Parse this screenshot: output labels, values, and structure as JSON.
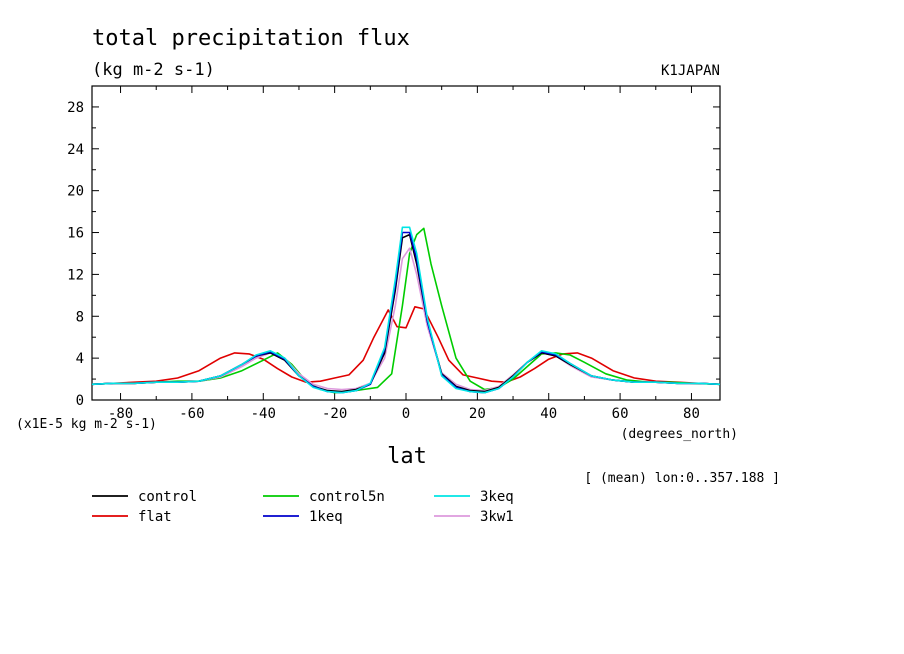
{
  "chart_data": {
    "type": "line",
    "title": "total precipitation flux",
    "units": "(kg m-2 s-1)",
    "source_label": "K1JAPAN",
    "ylabel_scale": "(x1E-5 kg m-2 s-1)",
    "xlabel": "lat",
    "xunits": "(degrees_north)",
    "mean_note": "[ (mean) lon:0..357.188 ]",
    "xlim": [
      -88,
      88
    ],
    "ylim": [
      0,
      30
    ],
    "xticks": [
      -80,
      -60,
      -40,
      -20,
      0,
      20,
      40,
      60,
      80
    ],
    "yticks": [
      0,
      4,
      8,
      12,
      16,
      20,
      24,
      28
    ],
    "colors": {
      "control": "#000000",
      "flat": "#e00000",
      "control5n": "#00cc00",
      "1keq": "#0000cc",
      "3keq": "#00e5e5",
      "3kw1": "#dd99dd"
    },
    "series": [
      {
        "name": "flat",
        "color": "#e00000",
        "x": [
          -88,
          -82,
          -76,
          -70,
          -64,
          -58,
          -52,
          -48,
          -44,
          -40,
          -36,
          -32,
          -28,
          -24,
          -20,
          -16,
          -12,
          -9,
          -5,
          -2.5,
          0,
          2.5,
          5,
          9,
          12,
          16,
          20,
          24,
          28,
          32,
          36,
          40,
          44,
          48,
          52,
          58,
          64,
          70,
          76,
          82,
          88
        ],
        "y": [
          1.5,
          1.6,
          1.7,
          1.8,
          2.1,
          2.8,
          4.0,
          4.5,
          4.4,
          3.9,
          3.0,
          2.2,
          1.7,
          1.8,
          2.1,
          2.4,
          3.8,
          6.0,
          8.6,
          7.0,
          6.9,
          8.9,
          8.7,
          6.0,
          3.8,
          2.4,
          2.1,
          1.8,
          1.7,
          2.2,
          3.0,
          3.9,
          4.4,
          4.5,
          4.0,
          2.8,
          2.1,
          1.8,
          1.7,
          1.6,
          1.5
        ]
      },
      {
        "name": "control5n",
        "color": "#00cc00",
        "x": [
          -88,
          -82,
          -76,
          -70,
          -64,
          -58,
          -52,
          -46,
          -40,
          -36,
          -32,
          -28,
          -24,
          -20,
          -16,
          -12,
          -8,
          -4,
          -1,
          1,
          3,
          5,
          7,
          10,
          14,
          18,
          22,
          26,
          30,
          34,
          38,
          42,
          46,
          50,
          56,
          62,
          68,
          74,
          80,
          88
        ],
        "y": [
          1.5,
          1.6,
          1.6,
          1.7,
          1.8,
          1.8,
          2.1,
          2.8,
          3.8,
          4.5,
          3.4,
          1.8,
          1.0,
          0.7,
          0.8,
          1.0,
          1.2,
          2.5,
          9.0,
          14.0,
          15.8,
          16.4,
          13.0,
          9.0,
          4.0,
          1.8,
          1.0,
          1.2,
          2.0,
          3.2,
          4.4,
          4.5,
          4.3,
          3.6,
          2.5,
          1.9,
          1.7,
          1.7,
          1.6,
          1.5
        ]
      },
      {
        "name": "3kw1",
        "color": "#dd99dd",
        "x": [
          -88,
          -82,
          -76,
          -70,
          -64,
          -58,
          -52,
          -46,
          -42,
          -38,
          -34,
          -30,
          -26,
          -22,
          -18,
          -14,
          -10,
          -6,
          -3,
          -1,
          1,
          3,
          6,
          10,
          14,
          18,
          22,
          26,
          30,
          34,
          38,
          42,
          46,
          52,
          58,
          64,
          70,
          76,
          82,
          88
        ],
        "y": [
          1.5,
          1.6,
          1.6,
          1.7,
          1.7,
          1.8,
          2.2,
          3.2,
          4.0,
          4.5,
          4.0,
          2.5,
          1.5,
          1.1,
          1.0,
          1.1,
          1.6,
          4.0,
          9.0,
          13.5,
          14.5,
          12.0,
          7.0,
          2.6,
          1.5,
          1.0,
          0.9,
          1.3,
          2.4,
          3.6,
          4.5,
          4.2,
          3.3,
          2.2,
          1.9,
          1.7,
          1.7,
          1.6,
          1.6,
          1.5
        ]
      },
      {
        "name": "control",
        "color": "#000000",
        "x": [
          -88,
          -82,
          -76,
          -70,
          -64,
          -58,
          -52,
          -46,
          -42,
          -38,
          -34,
          -30,
          -26,
          -22,
          -18,
          -14,
          -10,
          -6,
          -3,
          -1,
          1,
          3,
          6,
          10,
          14,
          18,
          22,
          26,
          30,
          34,
          38,
          42,
          46,
          52,
          58,
          64,
          70,
          76,
          82,
          88
        ],
        "y": [
          1.5,
          1.6,
          1.6,
          1.7,
          1.7,
          1.8,
          2.3,
          3.4,
          4.2,
          4.5,
          3.8,
          2.3,
          1.3,
          0.9,
          0.8,
          1.0,
          1.5,
          4.5,
          10.5,
          15.5,
          15.8,
          13.0,
          7.5,
          2.5,
          1.3,
          0.9,
          0.8,
          1.2,
          2.3,
          3.6,
          4.5,
          4.2,
          3.4,
          2.3,
          1.9,
          1.7,
          1.7,
          1.6,
          1.6,
          1.5
        ]
      },
      {
        "name": "1keq",
        "color": "#0000cc",
        "x": [
          -88,
          -82,
          -76,
          -70,
          -64,
          -58,
          -52,
          -46,
          -42,
          -38,
          -34,
          -30,
          -26,
          -22,
          -18,
          -14,
          -10,
          -6,
          -3,
          -1,
          1,
          3,
          6,
          10,
          14,
          18,
          22,
          26,
          30,
          34,
          38,
          42,
          46,
          52,
          58,
          64,
          70,
          76,
          82,
          88
        ],
        "y": [
          1.5,
          1.6,
          1.6,
          1.7,
          1.7,
          1.8,
          2.3,
          3.4,
          4.2,
          4.6,
          3.9,
          2.3,
          1.3,
          0.8,
          0.7,
          0.9,
          1.5,
          4.8,
          11.0,
          16.0,
          16.0,
          13.5,
          7.5,
          2.4,
          1.2,
          0.8,
          0.7,
          1.1,
          2.2,
          3.6,
          4.6,
          4.3,
          3.5,
          2.3,
          1.9,
          1.7,
          1.7,
          1.6,
          1.6,
          1.5
        ]
      },
      {
        "name": "3keq",
        "color": "#00e5e5",
        "x": [
          -88,
          -82,
          -76,
          -70,
          -64,
          -58,
          -52,
          -46,
          -42,
          -38,
          -34,
          -30,
          -26,
          -22,
          -18,
          -14,
          -10,
          -6,
          -3,
          -1,
          1,
          3,
          6,
          10,
          14,
          18,
          22,
          26,
          30,
          34,
          38,
          42,
          46,
          52,
          58,
          64,
          70,
          76,
          82,
          88
        ],
        "y": [
          1.5,
          1.6,
          1.6,
          1.7,
          1.7,
          1.8,
          2.3,
          3.4,
          4.3,
          4.7,
          4.0,
          2.3,
          1.2,
          0.8,
          0.7,
          0.9,
          1.6,
          5.0,
          11.5,
          16.5,
          16.5,
          14.0,
          7.8,
          2.3,
          1.1,
          0.8,
          0.7,
          1.1,
          2.2,
          3.6,
          4.7,
          4.4,
          3.5,
          2.3,
          1.9,
          1.7,
          1.7,
          1.6,
          1.6,
          1.5
        ]
      }
    ],
    "legend": [
      {
        "name": "control",
        "color": "#000000"
      },
      {
        "name": "flat",
        "color": "#e00000"
      },
      {
        "name": "control5n",
        "color": "#00cc00"
      },
      {
        "name": "1keq",
        "color": "#0000cc"
      },
      {
        "name": "3keq",
        "color": "#00e5e5"
      },
      {
        "name": "3kw1",
        "color": "#dd99dd"
      }
    ],
    "grid": false,
    "legend_placement": "bottom"
  }
}
